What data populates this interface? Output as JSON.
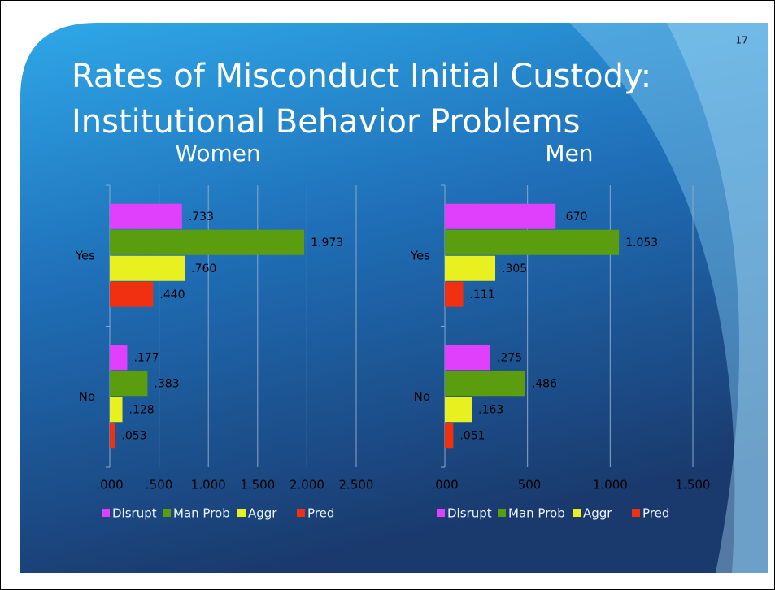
{
  "slide_number": "17",
  "title_lines": [
    "Rates of Misconduct Initial Custody:",
    "Institutional Behavior Problems"
  ],
  "chart_data": [
    {
      "type": "bar",
      "orientation": "horizontal",
      "title": "Women",
      "categories": [
        "Yes",
        "No"
      ],
      "series": [
        {
          "name": "Disrupt",
          "color": "#e040fb",
          "values": [
            0.733,
            0.177
          ],
          "value_labels": [
            ".733",
            ".177"
          ]
        },
        {
          "name": "Man Prob",
          "color": "#5a9e0f",
          "values": [
            1.973,
            0.383
          ],
          "value_labels": [
            "1.973",
            ".383"
          ]
        },
        {
          "name": "Aggr",
          "color": "#e8f020",
          "values": [
            0.76,
            0.128
          ],
          "value_labels": [
            ".760",
            ".128"
          ]
        },
        {
          "name": "Pred",
          "color": "#f03010",
          "values": [
            0.44,
            0.053
          ],
          "value_labels": [
            ".440",
            ".053"
          ]
        }
      ],
      "xlim": [
        0,
        2.5
      ],
      "xticks": [
        {
          "value": 0,
          "label": ".000"
        },
        {
          "value": 0.5,
          "label": ".500"
        },
        {
          "value": 1,
          "label": "1.000"
        },
        {
          "value": 1.5,
          "label": "1.500"
        },
        {
          "value": 2,
          "label": "2.000"
        },
        {
          "value": 2.5,
          "label": "2.500"
        }
      ],
      "grid": true,
      "legend": "bottom"
    },
    {
      "type": "bar",
      "orientation": "horizontal",
      "title": "Men",
      "categories": [
        "Yes",
        "No"
      ],
      "series": [
        {
          "name": "Disrupt",
          "color": "#e040fb",
          "values": [
            0.67,
            0.275
          ],
          "value_labels": [
            ".670",
            ".275"
          ]
        },
        {
          "name": "Man Prob",
          "color": "#5a9e0f",
          "values": [
            1.053,
            0.486
          ],
          "value_labels": [
            "1.053",
            ".486"
          ]
        },
        {
          "name": "Aggr",
          "color": "#e8f020",
          "values": [
            0.305,
            0.163
          ],
          "value_labels": [
            ".305",
            ".163"
          ]
        },
        {
          "name": "Pred",
          "color": "#f03010",
          "values": [
            0.111,
            0.051
          ],
          "value_labels": [
            ".111",
            ".051"
          ]
        }
      ],
      "xlim": [
        0,
        1.5
      ],
      "xticks": [
        {
          "value": 0,
          "label": ".000"
        },
        {
          "value": 0.5,
          "label": ".500"
        },
        {
          "value": 1,
          "label": "1.000"
        },
        {
          "value": 1.5,
          "label": "1.500"
        }
      ],
      "grid": true,
      "legend": "bottom"
    }
  ]
}
